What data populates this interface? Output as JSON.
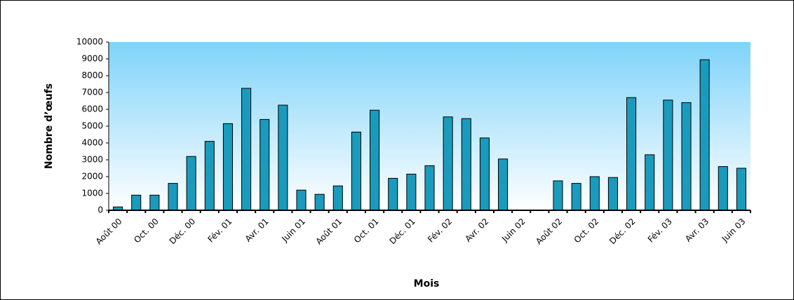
{
  "chart_data": {
    "type": "bar",
    "xlabel": "Mois",
    "ylabel": "Nombre d’œufs",
    "categories": [
      "Août 00",
      null,
      "Oct. 00",
      null,
      "Déc. 00",
      null,
      "Fév. 01",
      null,
      "Avr. 01",
      null,
      "Juin 01",
      null,
      "Août 01",
      null,
      "Oct. 01",
      null,
      "Déc. 01",
      null,
      "Fév. 02",
      null,
      "Avr. 02",
      null,
      "Juin 02",
      null,
      "Août 02",
      null,
      "Oct. 02",
      null,
      "Déc. 02",
      null,
      "Fév. 03",
      null,
      "Avr. 03",
      null,
      "Juin 03"
    ],
    "values": [
      200,
      900,
      900,
      1600,
      3200,
      4100,
      5150,
      7250,
      5400,
      6250,
      1200,
      950,
      1450,
      4650,
      5950,
      1900,
      2150,
      2650,
      5550,
      5450,
      4300,
      3050,
      null,
      null,
      1750,
      1600,
      2000,
      1950,
      6700,
      3300,
      6550,
      6400,
      8950,
      2600,
      2500
    ],
    "color": "#1a9bbd",
    "ylim": [
      0,
      10000
    ],
    "yticks": [
      0,
      1000,
      2000,
      3000,
      4000,
      5000,
      6000,
      7000,
      8000,
      9000,
      10000
    ]
  }
}
